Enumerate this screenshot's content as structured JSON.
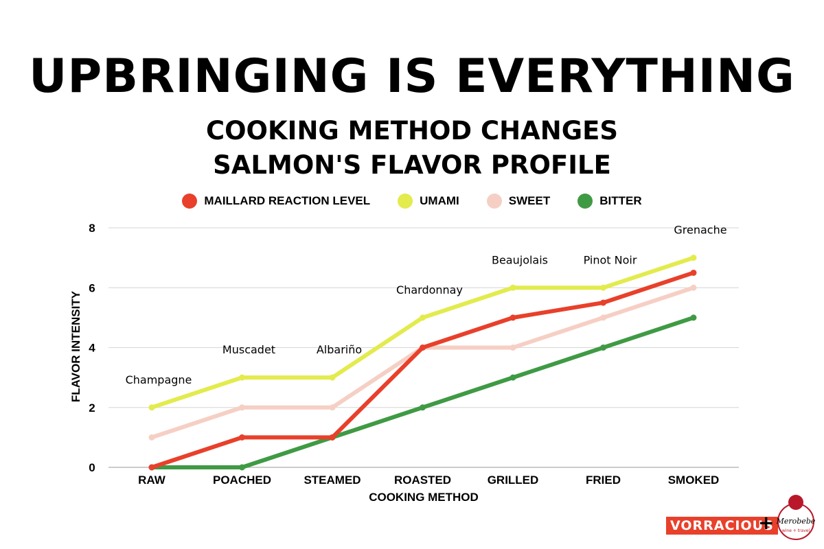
{
  "header": {
    "title": "UPBRINGING IS EVERYTHING",
    "subtitle_line1": "COOKING METHOD CHANGES",
    "subtitle_line2": "SALMON'S FLAVOR PROFILE"
  },
  "legend": [
    {
      "label": "MAILLARD REACTION LEVEL",
      "color": "#e8402b"
    },
    {
      "label": "UMAMI",
      "color": "#e3eb4d"
    },
    {
      "label": "SWEET",
      "color": "#f6cfc4"
    },
    {
      "label": "BITTER",
      "color": "#3f9a44"
    }
  ],
  "chart_data": {
    "type": "line",
    "categories": [
      "RAW",
      "POACHED",
      "STEAMED",
      "ROASTED",
      "GRILLED",
      "FRIED",
      "SMOKED"
    ],
    "xlabel": "COOKING METHOD",
    "ylabel": "FLAVOR INTENSITY",
    "ylim": [
      0,
      8
    ],
    "yticks": [
      0,
      2,
      4,
      6,
      8
    ],
    "grid": true,
    "legend_position": "top",
    "series": [
      {
        "name": "SWEET",
        "color": "#f6cfc4",
        "values": [
          1,
          2,
          2,
          4,
          4,
          5,
          6
        ]
      },
      {
        "name": "BITTER",
        "color": "#3f9a44",
        "values": [
          0,
          0,
          1,
          2,
          3,
          4,
          5
        ]
      },
      {
        "name": "MAILLARD REACTION LEVEL",
        "color": "#e8402b",
        "values": [
          0,
          1,
          1,
          4,
          5,
          5.5,
          6.5
        ]
      },
      {
        "name": "UMAMI",
        "color": "#e3eb4d",
        "values": [
          2,
          3,
          3,
          5,
          6,
          6,
          7
        ]
      }
    ],
    "annotations": [
      {
        "category": "RAW",
        "text": "Champagne"
      },
      {
        "category": "POACHED",
        "text": "Muscadet"
      },
      {
        "category": "STEAMED",
        "text": "Albariño"
      },
      {
        "category": "ROASTED",
        "text": "Chardonnay"
      },
      {
        "category": "GRILLED",
        "text": "Beaujolais"
      },
      {
        "category": "FRIED",
        "text": "Pinot Noir"
      },
      {
        "category": "SMOKED",
        "text": "Grenache"
      }
    ]
  },
  "branding": {
    "brand1": "VORRACIOUS",
    "plus": "+",
    "brand2": "Merobebe",
    "brand2_tagline": "wine + travel",
    "logo_color": "#b8182a"
  }
}
